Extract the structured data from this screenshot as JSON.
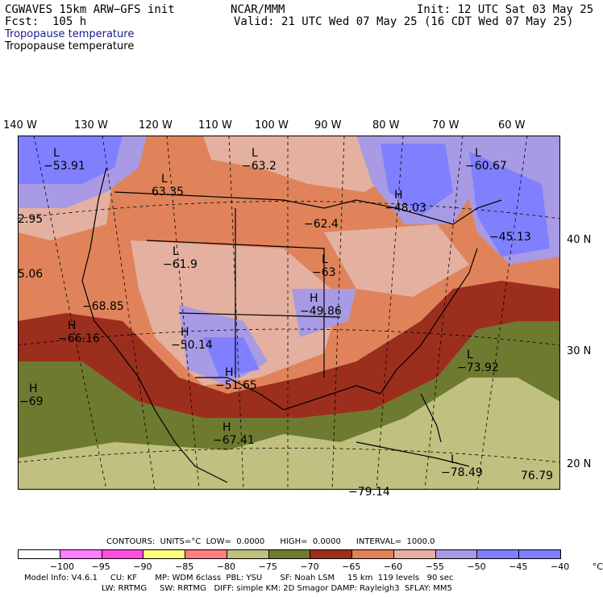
{
  "header": {
    "left_line1": "CGWAVES 15km ARW−GFS init",
    "left_line2": "Fcst:  105 h",
    "center_line1": "NCAR/MMM",
    "right_line1": "Init: 12 UTC Sat 03 May 25",
    "right_line2": "Valid: 21 UTC Wed 07 May 25 (16 CDT Wed 07 May 25)",
    "field_title_1": "Tropopause temperature",
    "field_title_2": "Tropopause temperature"
  },
  "longitude_labels": [
    "140 W",
    "130 W",
    "120 W",
    "110 W",
    "100 W",
    "90 W",
    "80 W",
    "70 W",
    "60 W"
  ],
  "latitude_labels": [
    "40 N",
    "30 N",
    "20 N"
  ],
  "map_labels": [
    {
      "type": "L",
      "value": "−53.91"
    },
    {
      "type": "L",
      "value": "−63.2"
    },
    {
      "type": "L",
      "value": "−60.67"
    },
    {
      "type": "L",
      "value": "63.35"
    },
    {
      "type": "H",
      "value": "−48.03"
    },
    {
      "type": "",
      "value": "2.95"
    },
    {
      "type": "",
      "value": "−62.4"
    },
    {
      "type": "",
      "value": "−45.13"
    },
    {
      "type": "L",
      "value": "−61.9"
    },
    {
      "type": "L",
      "value": "−63"
    },
    {
      "type": "",
      "value": "5.06"
    },
    {
      "type": "",
      "value": "−68.85"
    },
    {
      "type": "H",
      "value": "−49.86"
    },
    {
      "type": "H",
      "value": "−66.16"
    },
    {
      "type": "H",
      "value": "−50.14"
    },
    {
      "type": "L",
      "value": "−73.92"
    },
    {
      "type": "H",
      "value": "−51.65"
    },
    {
      "type": "H",
      "value": "−69"
    },
    {
      "type": "H",
      "value": "−67.41"
    },
    {
      "type": "L",
      "value": "−78.49"
    },
    {
      "type": "",
      "value": "−79.14"
    },
    {
      "type": "",
      "value": "76.79"
    }
  ],
  "contours_line": "CONTOURS:  UNITS=°C  LOW=  0.0000      HIGH=  0.0000      INTERVAL=  1000.0",
  "colorbar": {
    "ticks": [
      "−100",
      "−95",
      "−90",
      "−85",
      "−80",
      "−75",
      "−70",
      "−65",
      "−60",
      "−55",
      "−50",
      "−45",
      "−40",
      "°C"
    ],
    "colors": [
      "#ffffff",
      "#ff7fff",
      "#ff4fdf",
      "#ffff7f",
      "#ff7f7f",
      "#c0c080",
      "#6e7a30",
      "#9c2e1e",
      "#e0835a",
      "#e4b0a0",
      "#a89ae4",
      "#8080ff",
      "#7f7fff"
    ]
  },
  "footer": {
    "line1": "Model Info: V4.6.1     CU: KF       MP: WDM 6class  PBL: YSU       SF: Noah LSM     15 km  119 levels   90 sec",
    "line2": "LW: RRTMG     SW: RRTMG   DIFF: simple KM: 2D Smagor DAMP: Rayleigh3  SFLAY: MM5"
  }
}
